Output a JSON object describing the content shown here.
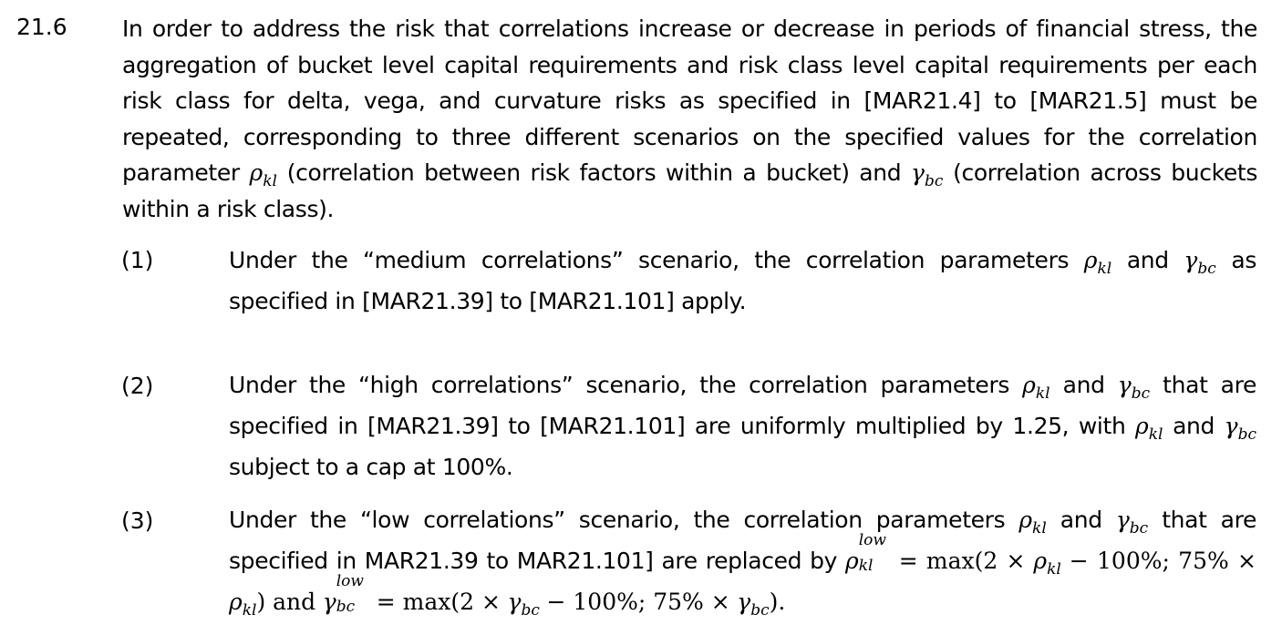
{
  "paragraph": {
    "number": "21.6",
    "text_1": "In order to address the risk that correlations increase or decrease in periods of financial stress, the aggregation of bucket level capital requirements and risk class level capital requirements per each risk class for delta, vega, and curvature risks as specified in [MAR21.4] to [MAR21.5] must be repeated, corresponding to three different scenarios on the specified values for the correlation parameter",
    "text_2": "(correlation between risk factors within a bucket) and",
    "text_3": "(correlation across buckets within a risk class)."
  },
  "symbols": {
    "rho": "ρ",
    "gamma": "γ",
    "kl": "kl",
    "bc": "bc",
    "low": "low"
  },
  "items": [
    {
      "number": "(1)",
      "text_1": "Under the “medium correlations” scenario, the correlation parameters",
      "and": "and",
      "text_2": "as specified in [MAR21.39] to [MAR21.101] apply."
    },
    {
      "number": "(2)",
      "text_1": "Under the “high correlations” scenario, the correlation parameters",
      "and": "and",
      "text_2": "that are specified in [MAR21.39] to [MAR21.101] are uniformly multiplied by 1.25, with",
      "and_2": "and",
      "text_3": "subject to a cap at 100%."
    },
    {
      "number": "(3)",
      "text_1": "Under the “low correlations” scenario, the correlation parameters",
      "and": "and",
      "text_2": "that are specified in MAR21.39 to MAR21.101] are replaced by",
      "eq_1": "= max(2 ×",
      "eq_2": "− 100%; 75% ×",
      "eq_3": ") and",
      "eq_4": "= max(2 ×",
      "eq_5": "− 100%; 75% ×",
      "eq_6": ")."
    }
  ]
}
